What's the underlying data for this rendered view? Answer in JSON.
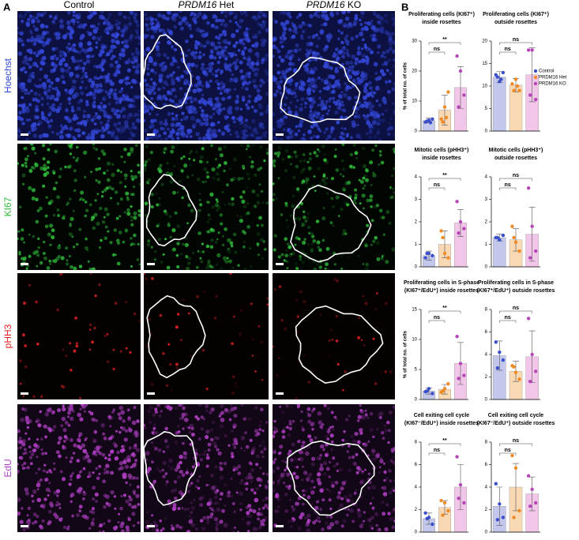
{
  "figure": {
    "panel_labels": [
      "A",
      "B"
    ],
    "columns": [
      {
        "text": "Control"
      },
      {
        "gene": "PRDM16",
        "text": "Het"
      },
      {
        "gene": "PRDM16",
        "text": "KO"
      }
    ],
    "rows": [
      {
        "label": "Hoechst",
        "color": "#3346d6"
      },
      {
        "label": "KI67",
        "color": "#2fb83a"
      },
      {
        "label": "pHH3",
        "color": "#e02222"
      },
      {
        "label": "EdU",
        "color": "#b03fc4"
      }
    ]
  },
  "groups": {
    "names": [
      "Control",
      "PRDM16 Het",
      "PRDM16 KO"
    ],
    "colors": [
      "#3b4fc8",
      "#f08a24",
      "#b646b8"
    ],
    "bar_colors": [
      "#c3c7ec",
      "#f9d8b4",
      "#f2c6e8"
    ]
  },
  "chart_data": [
    {
      "type": "bar",
      "title": [
        "Proliferating cells (KI67⁺)",
        "inside rosettes"
      ],
      "ylabel": "% of total no. of cells",
      "ylim": [
        0,
        30
      ],
      "yticks": [
        0,
        10,
        20,
        30
      ],
      "values": [
        3.5,
        7,
        14.5
      ],
      "errors": [
        0.8,
        5,
        7
      ],
      "points": [
        [
          3,
          3.6,
          4,
          3.3,
          2.8
        ],
        [
          4,
          8,
          13,
          3,
          4.5
        ],
        [
          25,
          20,
          12,
          8
        ]
      ],
      "comparisons": [
        {
          "pair": [
            0,
            1
          ],
          "label": "ns"
        },
        {
          "pair": [
            0,
            2
          ],
          "label": "**"
        }
      ]
    },
    {
      "type": "bar",
      "title": [
        "Proliferating cells (KI67⁺)",
        "outside rosettes"
      ],
      "ylim": [
        0,
        20
      ],
      "yticks": [
        0,
        5,
        10,
        15,
        20
      ],
      "values": [
        12,
        10.2,
        12.5
      ],
      "errors": [
        1.2,
        1.5,
        6
      ],
      "points": [
        [
          12.5,
          11,
          13,
          12,
          11.5
        ],
        [
          10.5,
          11.5,
          9,
          9,
          10
        ],
        [
          18,
          18,
          7,
          8
        ]
      ],
      "comparisons": [
        {
          "pair": [
            0,
            1
          ],
          "label": "ns"
        },
        {
          "pair": [
            0,
            2
          ],
          "label": "ns"
        }
      ],
      "legend": true
    },
    {
      "type": "bar",
      "title": [
        "Mitotic cells (pHH3⁺)",
        "inside rosettes"
      ],
      "ylim": [
        0,
        4
      ],
      "yticks": [
        0,
        1,
        2,
        3,
        4
      ],
      "values": [
        0.5,
        1,
        1.95
      ],
      "errors": [
        0.2,
        0.6,
        0.6
      ],
      "points": [
        [
          0.4,
          0.6,
          0.5,
          0.6
        ],
        [
          1.6,
          0.6,
          0.4,
          1.3
        ],
        [
          2.9,
          2,
          1.7,
          1.5
        ]
      ],
      "comparisons": [
        {
          "pair": [
            0,
            1
          ],
          "label": "ns"
        },
        {
          "pair": [
            0,
            2
          ],
          "label": "**"
        }
      ]
    },
    {
      "type": "bar",
      "title": [
        "Mitotic cells (pHH3⁺)",
        "outside rosettes"
      ],
      "ylim": [
        0,
        4
      ],
      "yticks": [
        0,
        1,
        2,
        3,
        4
      ],
      "values": [
        1.3,
        1.2,
        1.45
      ],
      "errors": [
        0.15,
        0.5,
        1.2
      ],
      "points": [
        [
          1.3,
          1.2,
          1.4,
          1.3
        ],
        [
          1.8,
          1.1,
          0.7,
          1.3
        ],
        [
          3.5,
          1.8,
          0.7,
          0.4
        ]
      ],
      "comparisons": [
        {
          "pair": [
            0,
            1
          ],
          "label": "ns"
        },
        {
          "pair": [
            0,
            2
          ],
          "label": "ns"
        }
      ]
    },
    {
      "type": "bar",
      "title": [
        "Proliferating cells in S-phase",
        "(KI67⁺/EdU⁺) inside rosettes"
      ],
      "ylabel": "% of total no. of cells",
      "ylim": [
        0,
        15
      ],
      "yticks": [
        0,
        5,
        10,
        15
      ],
      "values": [
        1.4,
        1.7,
        6
      ],
      "errors": [
        0.5,
        0.8,
        3.5
      ],
      "points": [
        [
          1.3,
          1.8,
          1,
          1.4
        ],
        [
          1.2,
          1.8,
          2.6,
          1.4
        ],
        [
          10.5,
          6,
          4,
          3.5
        ]
      ],
      "comparisons": [
        {
          "pair": [
            0,
            1
          ],
          "label": "ns"
        },
        {
          "pair": [
            0,
            2
          ],
          "label": "**"
        }
      ]
    },
    {
      "type": "bar",
      "title": [
        "Proliferating cells in S-phase",
        "(KI67⁺/EdU⁺) outside rosettes"
      ],
      "ylim": [
        0,
        8
      ],
      "yticks": [
        0,
        2,
        4,
        6,
        8
      ],
      "values": [
        3.9,
        2.5,
        3.8
      ],
      "errors": [
        1.3,
        0.9,
        2.3
      ],
      "points": [
        [
          5.1,
          4.2,
          3.5,
          2.8
        ],
        [
          3,
          2.4,
          1.8,
          2.9
        ],
        [
          7.2,
          4,
          2.5,
          1.6
        ]
      ],
      "comparisons": [
        {
          "pair": [
            0,
            1
          ],
          "label": "ns"
        },
        {
          "pair": [
            0,
            2
          ],
          "label": "ns"
        }
      ]
    },
    {
      "type": "bar",
      "title": [
        "Cell exiting cell cycle",
        "(KI67⁻/EdU⁺) inside rosettes"
      ],
      "ylim": [
        0,
        8
      ],
      "yticks": [
        0,
        2,
        4,
        6,
        8
      ],
      "values": [
        1.2,
        2.2,
        4
      ],
      "errors": [
        0.5,
        0.6,
        2
      ],
      "points": [
        [
          1.7,
          1.3,
          0.7,
          1.2
        ],
        [
          2.8,
          2.6,
          1.9,
          1.5
        ],
        [
          6.7,
          4.2,
          2.6,
          3
        ]
      ],
      "comparisons": [
        {
          "pair": [
            0,
            1
          ],
          "label": "ns"
        },
        {
          "pair": [
            0,
            2
          ],
          "label": "**"
        }
      ]
    },
    {
      "type": "bar",
      "title": [
        "Cell exiting cell cycle",
        "(KI67⁻/EdU⁺) outside rosettes"
      ],
      "ylim": [
        0,
        8
      ],
      "yticks": [
        0,
        2,
        4,
        6,
        8
      ],
      "values": [
        2.3,
        4,
        3.4
      ],
      "errors": [
        1.7,
        2.1,
        1.5
      ],
      "points": [
        [
          4.3,
          2.5,
          1.3,
          1.1
        ],
        [
          6.8,
          5.7,
          1.9,
          1.3
        ],
        [
          5,
          3.8,
          2.6,
          2.3
        ]
      ],
      "comparisons": [
        {
          "pair": [
            0,
            1
          ],
          "label": "ns"
        },
        {
          "pair": [
            0,
            2
          ],
          "label": "ns"
        }
      ]
    }
  ]
}
